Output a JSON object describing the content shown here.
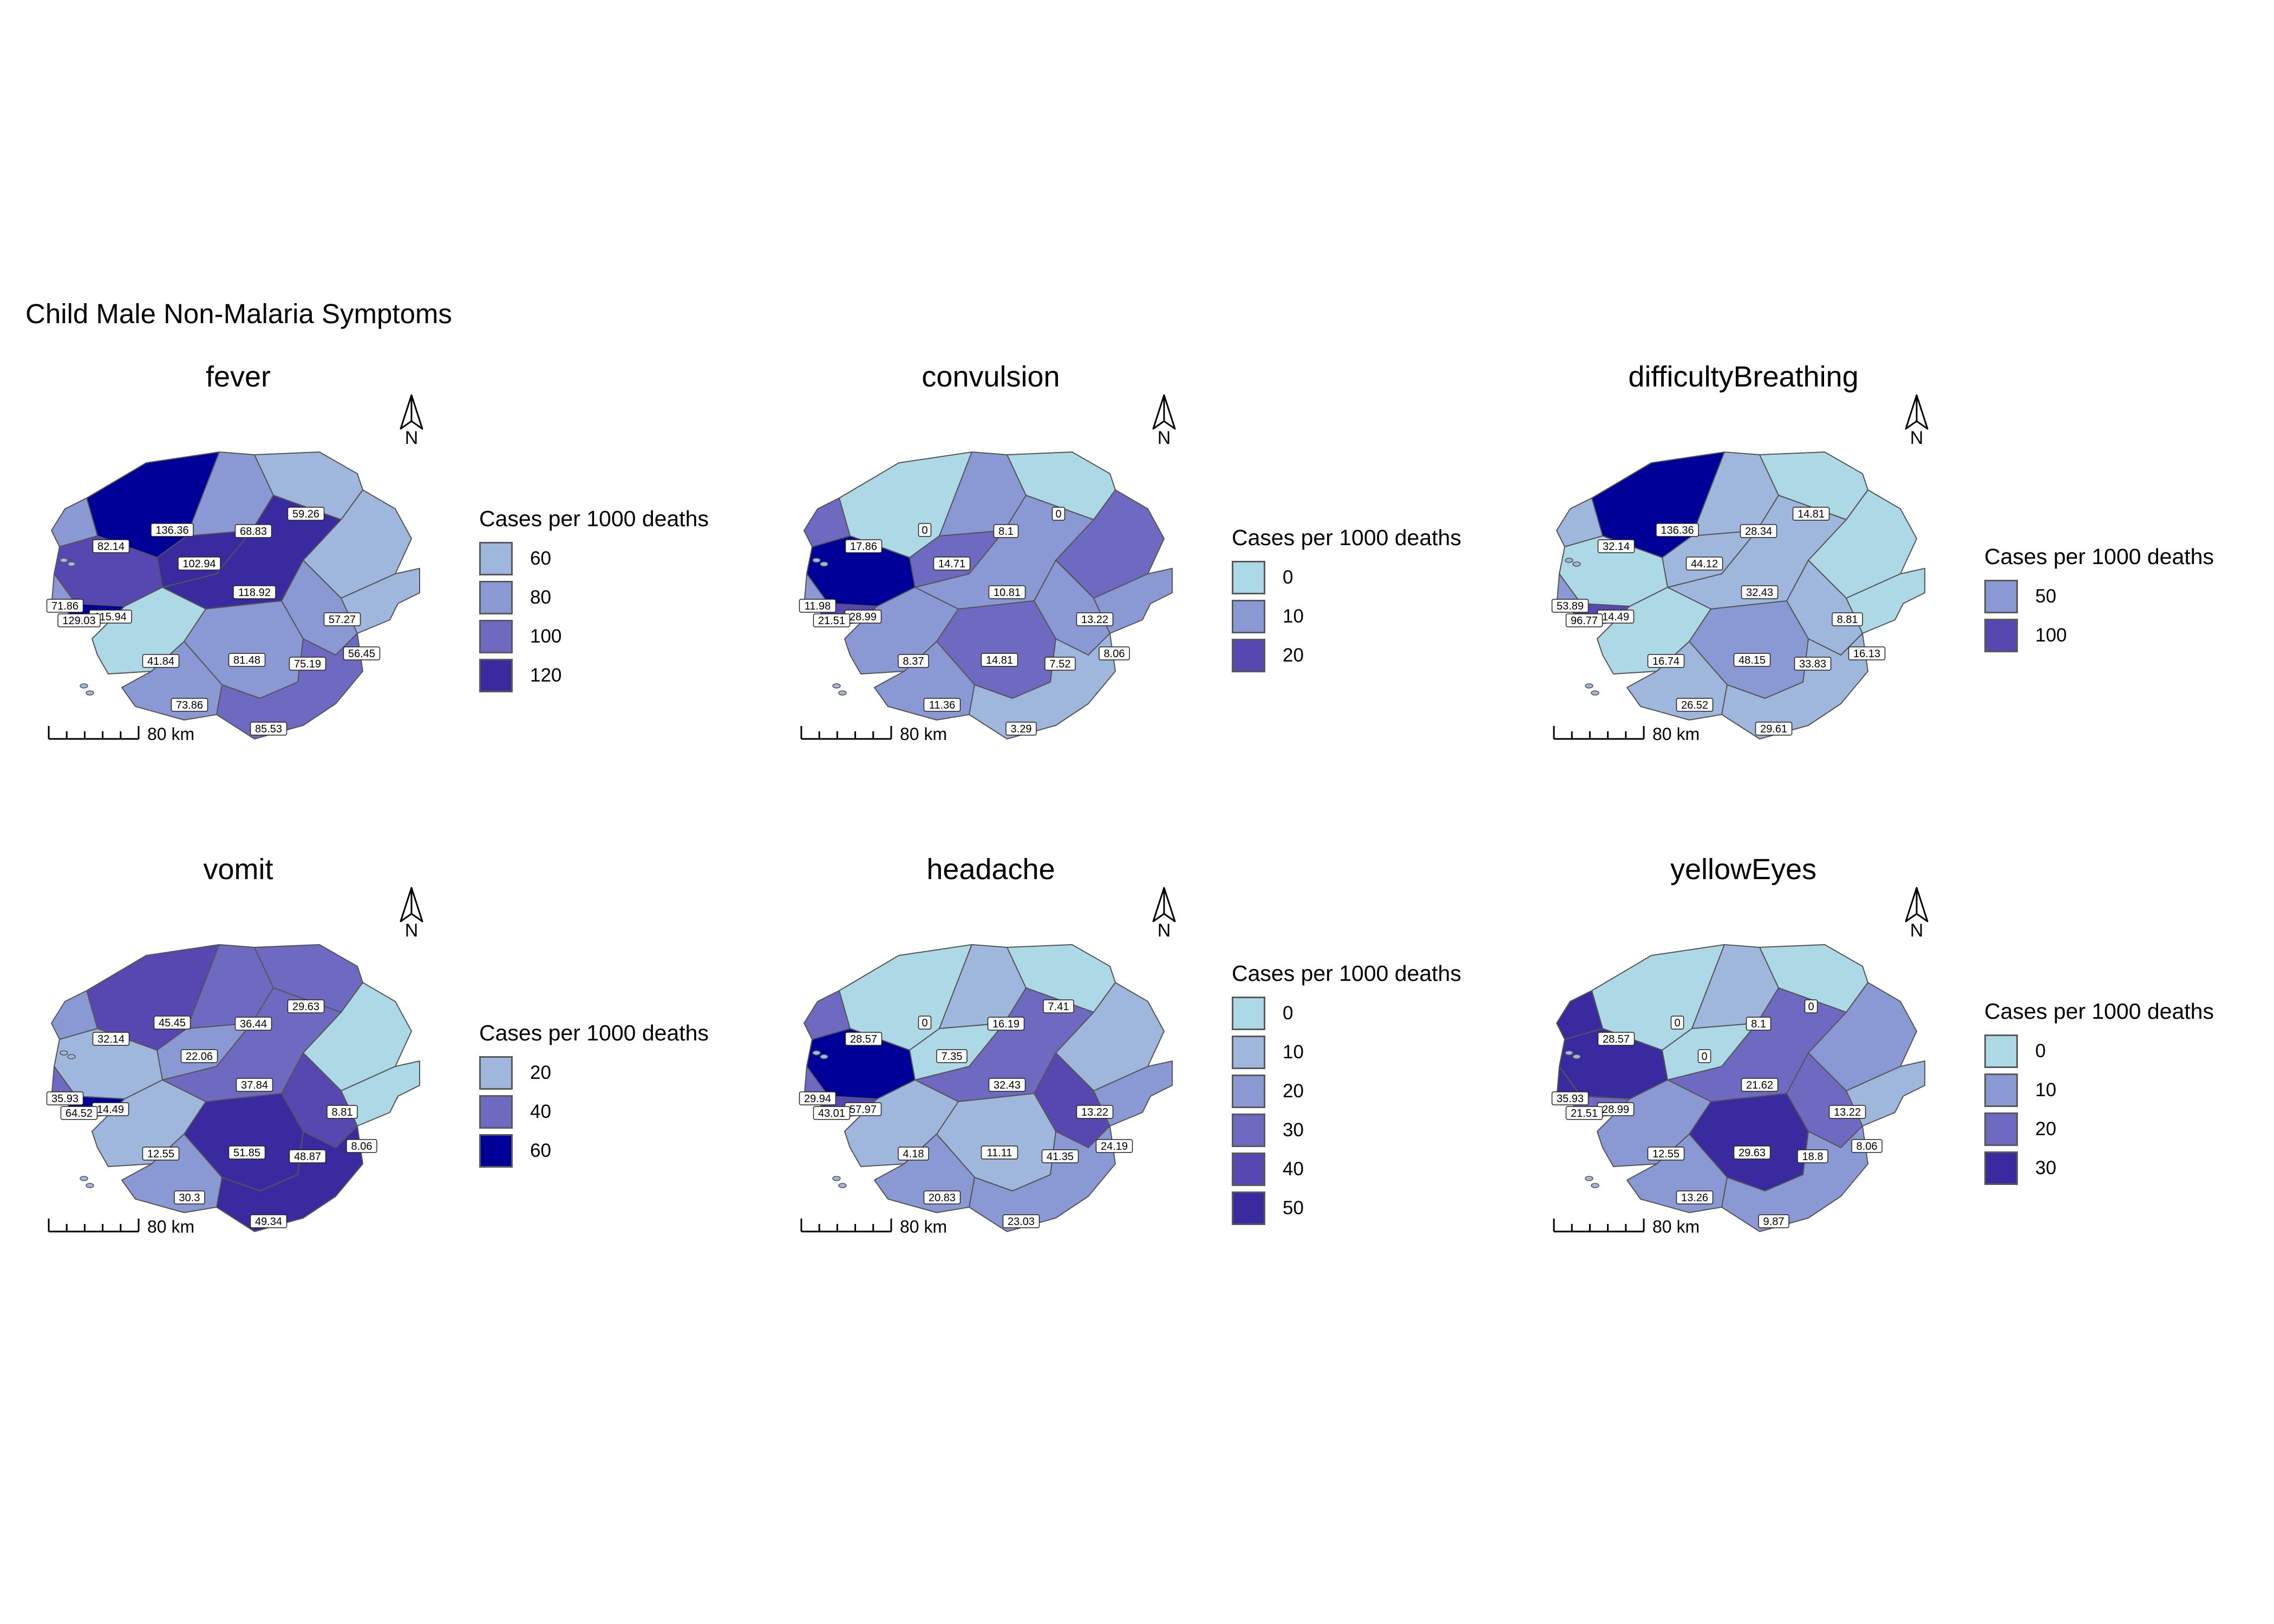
{
  "title": "Child Male Non-Malaria Symptoms",
  "legend_title": "Cases per 1000 deaths",
  "scale_bar_label": "80 km",
  "north_arrow_label": "N",
  "colors": {
    "c0": "#add8e6",
    "c1": "#9fb6dd",
    "c2": "#8a98d4",
    "c3": "#6e69c1",
    "c4": "#5747b0",
    "c5": "#3a2aa0",
    "c6": "#000099",
    "outline": "#555555"
  },
  "chart_data": [
    {
      "type": "choropleth",
      "title": "fever",
      "legend": {
        "title": "Cases per 1000 deaths",
        "breaks": [
          "60",
          "80",
          "100",
          "120"
        ],
        "colors": [
          "#9fb6dd",
          "#8a98d4",
          "#6e69c1",
          "#3a2aa0"
        ]
      },
      "regions": [
        {
          "name": "R1",
          "value": "136.36",
          "color": "#000099"
        },
        {
          "name": "R2",
          "value": "68.83",
          "color": "#8a98d4"
        },
        {
          "name": "R3",
          "value": "59.26",
          "color": "#9fb6dd"
        },
        {
          "name": "R4",
          "value": "82.14",
          "color": "#8a98d4"
        },
        {
          "name": "R5",
          "value": "102.94",
          "color": "#3a2aa0"
        },
        {
          "name": "R6",
          "value": "118.92",
          "color": "#3a2aa0"
        },
        {
          "name": "R7",
          "value": "57.27",
          "color": "#9fb6dd"
        },
        {
          "name": "R8",
          "value": "115.94",
          "color": "#5747b0"
        },
        {
          "name": "R9",
          "value": "71.86",
          "color": "#8a98d4"
        },
        {
          "name": "R10",
          "value": "129.03",
          "color": "#000099"
        },
        {
          "name": "R11",
          "value": "41.84",
          "color": "#add8e6"
        },
        {
          "name": "R12",
          "value": "81.48",
          "color": "#8a98d4"
        },
        {
          "name": "R13",
          "value": "75.19",
          "color": "#8a98d4"
        },
        {
          "name": "R14",
          "value": "56.45",
          "color": "#9fb6dd"
        },
        {
          "name": "R15",
          "value": "73.86",
          "color": "#8a98d4"
        },
        {
          "name": "R16",
          "value": "85.53",
          "color": "#6e69c1"
        }
      ]
    },
    {
      "type": "choropleth",
      "title": "convulsion",
      "legend": {
        "title": "Cases per 1000 deaths",
        "breaks": [
          "0",
          "10",
          "20"
        ],
        "colors": [
          "#add8e6",
          "#8a98d4",
          "#5747b0"
        ]
      },
      "regions": [
        {
          "name": "R1",
          "value": "0",
          "color": "#add8e6"
        },
        {
          "name": "R2",
          "value": "8.1",
          "color": "#8a98d4"
        },
        {
          "name": "R3",
          "value": "0",
          "color": "#add8e6"
        },
        {
          "name": "R4",
          "value": "17.86",
          "color": "#6e69c1"
        },
        {
          "name": "R5",
          "value": "14.71",
          "color": "#6e69c1"
        },
        {
          "name": "R6",
          "value": "10.81",
          "color": "#8a98d4"
        },
        {
          "name": "R7",
          "value": "13.22",
          "color": "#6e69c1"
        },
        {
          "name": "R8",
          "value": "28.99",
          "color": "#000099"
        },
        {
          "name": "R9",
          "value": "11.98",
          "color": "#8a98d4"
        },
        {
          "name": "R10",
          "value": "21.51",
          "color": "#5747b0"
        },
        {
          "name": "R11",
          "value": "8.37",
          "color": "#8a98d4"
        },
        {
          "name": "R12",
          "value": "14.81",
          "color": "#6e69c1"
        },
        {
          "name": "R13",
          "value": "7.52",
          "color": "#8a98d4"
        },
        {
          "name": "R14",
          "value": "8.06",
          "color": "#8a98d4"
        },
        {
          "name": "R15",
          "value": "11.36",
          "color": "#8a98d4"
        },
        {
          "name": "R16",
          "value": "3.29",
          "color": "#9fb6dd"
        }
      ]
    },
    {
      "type": "choropleth",
      "title": "difficultyBreathing",
      "legend": {
        "title": "Cases per 1000 deaths",
        "breaks": [
          "50",
          "100"
        ],
        "colors": [
          "#8a98d4",
          "#5747b0"
        ]
      },
      "regions": [
        {
          "name": "R1",
          "value": "136.36",
          "color": "#000099"
        },
        {
          "name": "R2",
          "value": "28.34",
          "color": "#9fb6dd"
        },
        {
          "name": "R3",
          "value": "14.81",
          "color": "#add8e6"
        },
        {
          "name": "R4",
          "value": "32.14",
          "color": "#9fb6dd"
        },
        {
          "name": "R5",
          "value": "44.12",
          "color": "#9fb6dd"
        },
        {
          "name": "R6",
          "value": "32.43",
          "color": "#9fb6dd"
        },
        {
          "name": "R7",
          "value": "8.81",
          "color": "#add8e6"
        },
        {
          "name": "R8",
          "value": "14.49",
          "color": "#add8e6"
        },
        {
          "name": "R9",
          "value": "53.89",
          "color": "#8a98d4"
        },
        {
          "name": "R10",
          "value": "96.77",
          "color": "#5747b0"
        },
        {
          "name": "R11",
          "value": "16.74",
          "color": "#add8e6"
        },
        {
          "name": "R12",
          "value": "48.15",
          "color": "#8a98d4"
        },
        {
          "name": "R13",
          "value": "33.83",
          "color": "#9fb6dd"
        },
        {
          "name": "R14",
          "value": "16.13",
          "color": "#add8e6"
        },
        {
          "name": "R15",
          "value": "26.52",
          "color": "#9fb6dd"
        },
        {
          "name": "R16",
          "value": "29.61",
          "color": "#9fb6dd"
        }
      ]
    },
    {
      "type": "choropleth",
      "title": "vomit",
      "legend": {
        "title": "Cases per 1000 deaths",
        "breaks": [
          "20",
          "40",
          "60"
        ],
        "colors": [
          "#9fb6dd",
          "#6e69c1",
          "#000099"
        ]
      },
      "regions": [
        {
          "name": "R1",
          "value": "45.45",
          "color": "#5747b0"
        },
        {
          "name": "R2",
          "value": "36.44",
          "color": "#6e69c1"
        },
        {
          "name": "R3",
          "value": "29.63",
          "color": "#6e69c1"
        },
        {
          "name": "R4",
          "value": "32.14",
          "color": "#8a98d4"
        },
        {
          "name": "R5",
          "value": "22.06",
          "color": "#8a98d4"
        },
        {
          "name": "R6",
          "value": "37.84",
          "color": "#6e69c1"
        },
        {
          "name": "R7",
          "value": "8.81",
          "color": "#add8e6"
        },
        {
          "name": "R8",
          "value": "14.49",
          "color": "#9fb6dd"
        },
        {
          "name": "R9",
          "value": "35.93",
          "color": "#6e69c1"
        },
        {
          "name": "R10",
          "value": "64.52",
          "color": "#000099"
        },
        {
          "name": "R11",
          "value": "12.55",
          "color": "#9fb6dd"
        },
        {
          "name": "R12",
          "value": "51.85",
          "color": "#3a2aa0"
        },
        {
          "name": "R13",
          "value": "48.87",
          "color": "#5747b0"
        },
        {
          "name": "R14",
          "value": "8.06",
          "color": "#add8e6"
        },
        {
          "name": "R15",
          "value": "30.3",
          "color": "#8a98d4"
        },
        {
          "name": "R16",
          "value": "49.34",
          "color": "#3a2aa0"
        }
      ]
    },
    {
      "type": "choropleth",
      "title": "headache",
      "legend": {
        "title": "Cases per 1000 deaths",
        "breaks": [
          "0",
          "10",
          "20",
          "30",
          "40",
          "50"
        ],
        "colors": [
          "#add8e6",
          "#9fb6dd",
          "#8a98d4",
          "#6e69c1",
          "#5747b0",
          "#3a2aa0"
        ]
      },
      "regions": [
        {
          "name": "R1",
          "value": "0",
          "color": "#add8e6"
        },
        {
          "name": "R2",
          "value": "16.19",
          "color": "#9fb6dd"
        },
        {
          "name": "R3",
          "value": "7.41",
          "color": "#add8e6"
        },
        {
          "name": "R4",
          "value": "28.57",
          "color": "#6e69c1"
        },
        {
          "name": "R5",
          "value": "7.35",
          "color": "#add8e6"
        },
        {
          "name": "R6",
          "value": "32.43",
          "color": "#6e69c1"
        },
        {
          "name": "R7",
          "value": "13.22",
          "color": "#9fb6dd"
        },
        {
          "name": "R8",
          "value": "57.97",
          "color": "#000099"
        },
        {
          "name": "R9",
          "value": "29.94",
          "color": "#6e69c1"
        },
        {
          "name": "R10",
          "value": "43.01",
          "color": "#5747b0"
        },
        {
          "name": "R11",
          "value": "4.18",
          "color": "#9fb6dd"
        },
        {
          "name": "R12",
          "value": "11.11",
          "color": "#9fb6dd"
        },
        {
          "name": "R13",
          "value": "41.35",
          "color": "#5747b0"
        },
        {
          "name": "R14",
          "value": "24.19",
          "color": "#8a98d4"
        },
        {
          "name": "R15",
          "value": "20.83",
          "color": "#8a98d4"
        },
        {
          "name": "R16",
          "value": "23.03",
          "color": "#8a98d4"
        }
      ]
    },
    {
      "type": "choropleth",
      "title": "yellowEyes",
      "legend": {
        "title": "Cases per 1000 deaths",
        "breaks": [
          "0",
          "10",
          "20",
          "30"
        ],
        "colors": [
          "#add8e6",
          "#8a98d4",
          "#6e69c1",
          "#3a2aa0"
        ]
      },
      "regions": [
        {
          "name": "R1",
          "value": "0",
          "color": "#add8e6"
        },
        {
          "name": "R2",
          "value": "8.1",
          "color": "#9fb6dd"
        },
        {
          "name": "R3",
          "value": "0",
          "color": "#add8e6"
        },
        {
          "name": "R4",
          "value": "28.57",
          "color": "#3a2aa0"
        },
        {
          "name": "R5",
          "value": "0",
          "color": "#add8e6"
        },
        {
          "name": "R6",
          "value": "21.62",
          "color": "#6e69c1"
        },
        {
          "name": "R7",
          "value": "13.22",
          "color": "#8a98d4"
        },
        {
          "name": "R8",
          "value": "28.99",
          "color": "#3a2aa0"
        },
        {
          "name": "R9",
          "value": "35.93",
          "color": "#3a2aa0"
        },
        {
          "name": "R10",
          "value": "21.51",
          "color": "#6e69c1"
        },
        {
          "name": "R11",
          "value": "12.55",
          "color": "#8a98d4"
        },
        {
          "name": "R12",
          "value": "29.63",
          "color": "#3a2aa0"
        },
        {
          "name": "R13",
          "value": "18.8",
          "color": "#6e69c1"
        },
        {
          "name": "R14",
          "value": "8.06",
          "color": "#9fb6dd"
        },
        {
          "name": "R15",
          "value": "13.26",
          "color": "#8a98d4"
        },
        {
          "name": "R16",
          "value": "9.87",
          "color": "#8a98d4"
        }
      ]
    }
  ]
}
